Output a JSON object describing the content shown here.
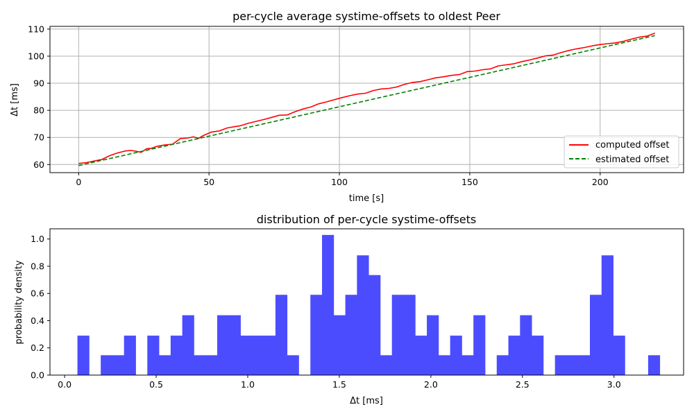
{
  "colors": {
    "computed": "#ff0000",
    "estimated": "#008000",
    "hist": "#4c4cff",
    "grid": "#b0b0b0"
  },
  "chart_data": [
    {
      "type": "line",
      "title": "per-cycle average systime-offsets to oldest Peer",
      "xlabel": "time [s]",
      "ylabel": "Δt [ms]",
      "xlim": [
        -11,
        232
      ],
      "ylim": [
        57,
        111
      ],
      "xticks": [
        0,
        50,
        100,
        150,
        200
      ],
      "yticks": [
        60,
        70,
        80,
        90,
        100,
        110
      ],
      "grid": true,
      "legend_position": "lower-right",
      "series": [
        {
          "name": "computed offset",
          "style": "solid",
          "x": [
            0,
            3,
            6,
            9,
            12,
            15,
            18,
            20,
            22,
            24,
            26,
            28,
            30,
            33,
            36,
            39,
            42,
            44,
            46,
            48,
            51,
            54,
            57,
            60,
            62,
            65,
            68,
            71,
            74,
            77,
            80,
            83,
            86,
            89,
            92,
            95,
            98,
            101,
            104,
            107,
            110,
            113,
            116,
            119,
            122,
            125,
            128,
            131,
            134,
            137,
            140,
            143,
            146,
            149,
            152,
            155,
            158,
            161,
            164,
            167,
            170,
            173,
            176,
            179,
            182,
            185,
            188,
            191,
            194,
            197,
            200,
            203,
            206,
            209,
            212,
            215,
            218,
            221
          ],
          "y": [
            60.4,
            60.7,
            61.3,
            61.9,
            63.3,
            64.3,
            65.0,
            65.2,
            64.9,
            64.5,
            65.8,
            66.0,
            66.7,
            67.2,
            67.5,
            69.6,
            69.8,
            70.2,
            69.7,
            70.8,
            72.0,
            72.4,
            73.5,
            74.0,
            74.3,
            75.2,
            75.9,
            76.6,
            77.4,
            78.2,
            78.3,
            79.5,
            80.5,
            81.2,
            82.4,
            83.1,
            83.9,
            84.7,
            85.4,
            86.0,
            86.3,
            87.3,
            87.9,
            88.1,
            88.6,
            89.6,
            90.3,
            90.6,
            91.3,
            92.0,
            92.4,
            92.9,
            93.2,
            94.3,
            94.5,
            95.0,
            95.3,
            96.4,
            96.8,
            97.2,
            98.0,
            98.6,
            99.3,
            100.1,
            100.4,
            101.3,
            102.1,
            102.7,
            103.2,
            103.8,
            104.3,
            104.6,
            104.9,
            105.5,
            106.3,
            107.0,
            107.4,
            108.5
          ]
        },
        {
          "name": "estimated offset",
          "style": "dashed",
          "x": [
            0,
            221
          ],
          "y": [
            59.6,
            107.6
          ]
        }
      ]
    },
    {
      "type": "histogram",
      "title": "distribution of per-cycle systime-offsets",
      "xlabel": "Δt [ms]",
      "ylabel": "probability density",
      "xlim": [
        -0.08,
        3.38
      ],
      "ylim": [
        0,
        1.075
      ],
      "xticks": [
        "0.0",
        "0.5",
        "1.0",
        "1.5",
        "2.0",
        "2.5",
        "3.0"
      ],
      "yticks": [
        "0.0",
        "0.2",
        "0.4",
        "0.6",
        "0.8",
        "1.0"
      ],
      "bin_start": 0.07,
      "bin_width": 0.0636,
      "values": [
        0.29,
        0,
        0.146,
        0.146,
        0.29,
        0,
        0.29,
        0.146,
        0.29,
        0.44,
        0.146,
        0.146,
        0.44,
        0.44,
        0.29,
        0.29,
        0.29,
        0.59,
        0.146,
        0,
        0.59,
        1.03,
        0.44,
        0.59,
        0.88,
        0.735,
        0.146,
        0.59,
        0.59,
        0.29,
        0.44,
        0.146,
        0.29,
        0.146,
        0.44,
        0,
        0.146,
        0.29,
        0.44,
        0.29,
        0,
        0.146,
        0.146,
        0.146,
        0.59,
        0.88,
        0.29,
        0,
        0,
        0.146
      ]
    }
  ]
}
